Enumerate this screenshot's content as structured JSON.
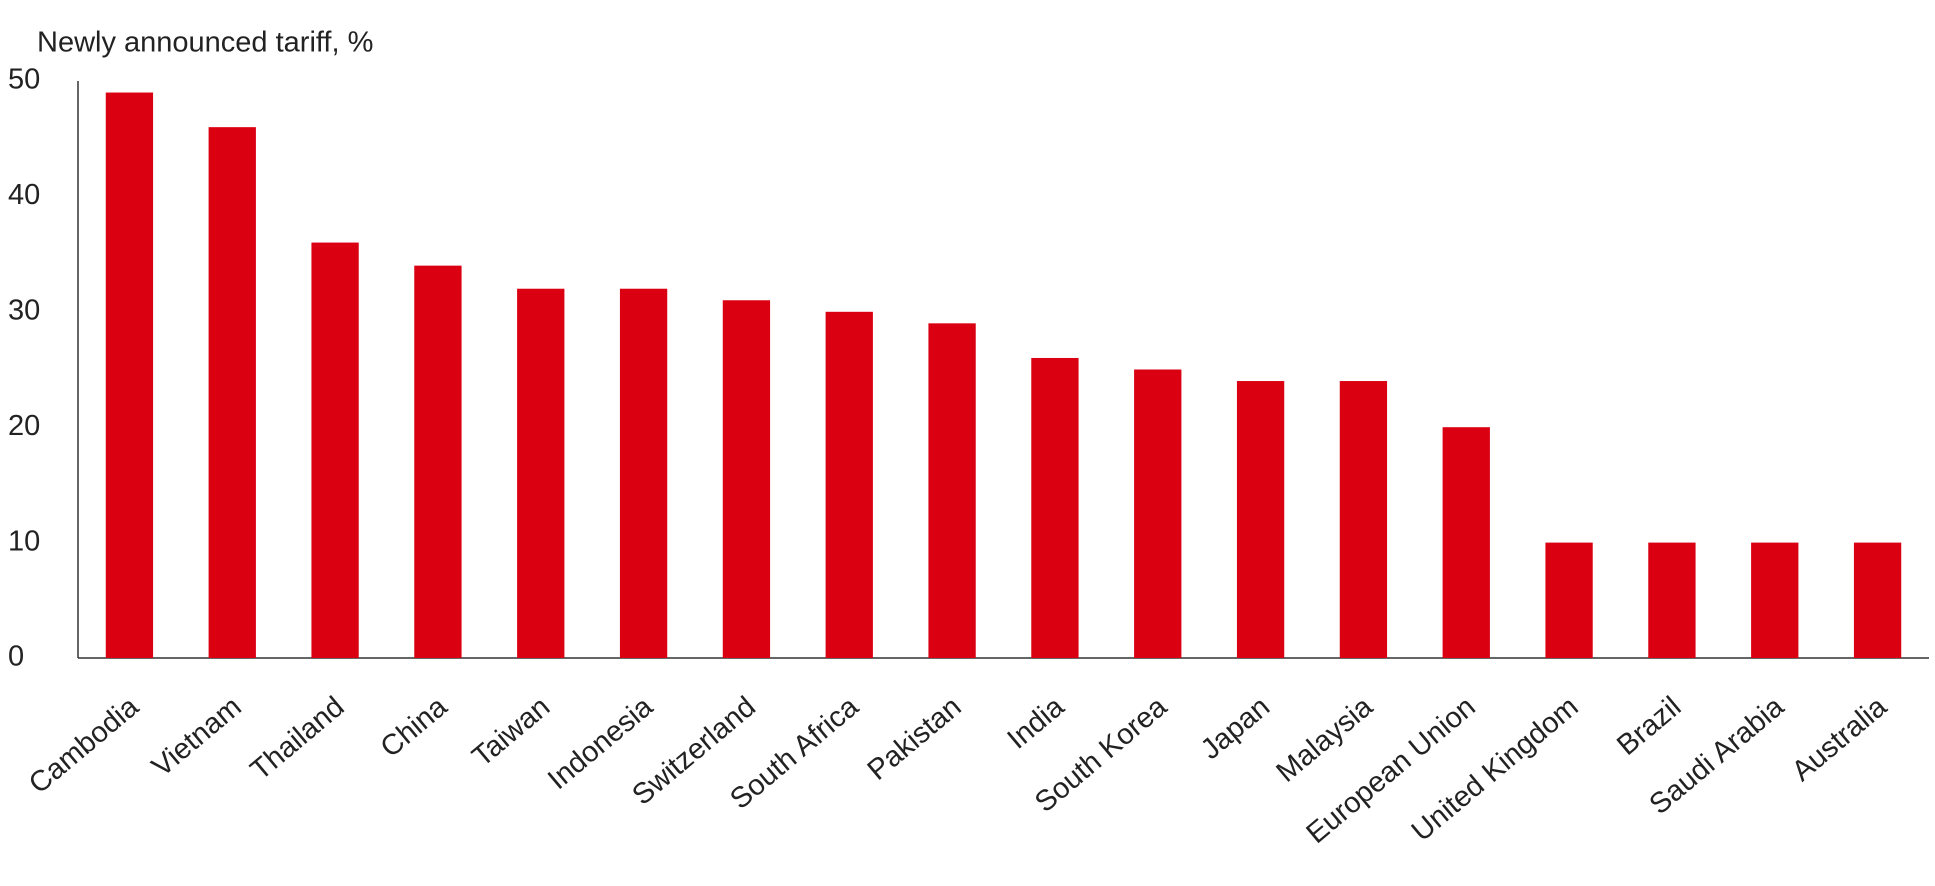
{
  "chart_data": {
    "type": "bar",
    "title": "Newly announced tariff, %",
    "categories": [
      "Cambodia",
      "Vietnam",
      "Thailand",
      "China",
      "Taiwan",
      "Indonesia",
      "Switzerland",
      "South Africa",
      "Pakistan",
      "India",
      "South Korea",
      "Japan",
      "Malaysia",
      "European Union",
      "United Kingdom",
      "Brazil",
      "Saudi Arabia",
      "Australia"
    ],
    "values": [
      49,
      46,
      36,
      34,
      32,
      32,
      31,
      30,
      29,
      26,
      25,
      24,
      24,
      20,
      10,
      10,
      10,
      10
    ],
    "color": "#db0011",
    "ylim": [
      0,
      50
    ],
    "yticks": [
      0,
      10,
      20,
      30,
      40,
      50
    ],
    "grid": false
  }
}
